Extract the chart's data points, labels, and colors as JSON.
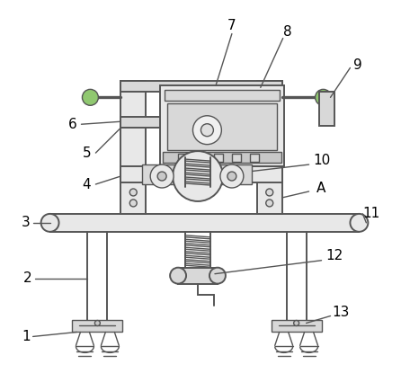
{
  "bg_color": "#ffffff",
  "line_color": "#555555",
  "label_color": "#000000",
  "fig_width": 4.46,
  "fig_height": 4.15,
  "dpi": 100,
  "green_knob": "#90c870",
  "gray_light": "#e8e8e8",
  "gray_mid": "#d8d8d8",
  "gray_dark": "#c8c8c8"
}
